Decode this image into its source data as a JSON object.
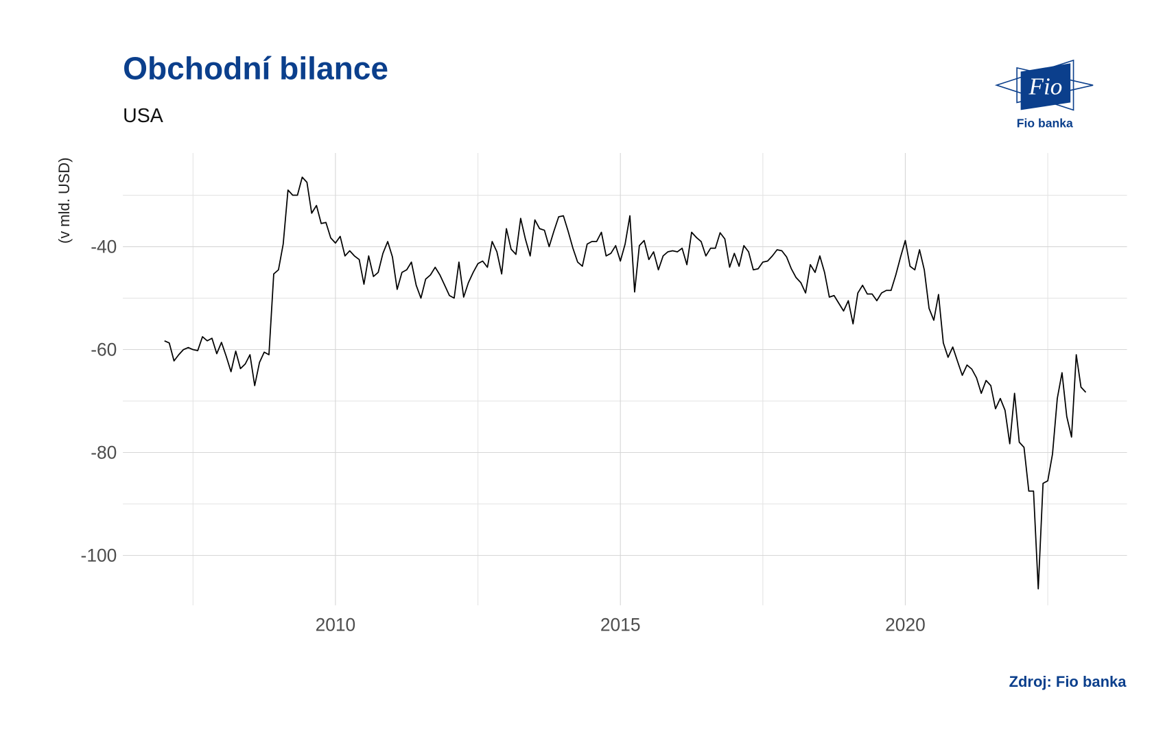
{
  "chart_data": {
    "type": "line",
    "title": "Obchodní bilance",
    "subtitle": "USA",
    "y_label": "(v mld. USD)",
    "source": "Zdroj: Fio banka",
    "logo": {
      "mark": "Fio",
      "name": "Fio banka"
    },
    "color": "#000000",
    "grid": true,
    "xlim": [
      2006.27,
      2023.89
    ],
    "xticks": [
      2010,
      2015,
      2020
    ],
    "xticks_minor": [
      2007.5,
      2012.5,
      2017.5,
      2022.5
    ],
    "ylim": [
      -109.7,
      -21.8
    ],
    "yticks": [
      -100,
      -80,
      -60,
      -40
    ],
    "yticks_minor": [
      -90,
      -70,
      -50,
      -30
    ],
    "x": [
      2007,
      2007.083,
      2007.167,
      2007.25,
      2007.333,
      2007.417,
      2007.5,
      2007.583,
      2007.667,
      2007.75,
      2007.833,
      2007.917,
      2008,
      2008.083,
      2008.167,
      2008.25,
      2008.333,
      2008.417,
      2008.5,
      2008.583,
      2008.667,
      2008.75,
      2008.833,
      2008.917,
      2009,
      2009.083,
      2009.167,
      2009.25,
      2009.333,
      2009.417,
      2009.5,
      2009.583,
      2009.667,
      2009.75,
      2009.833,
      2009.917,
      2010,
      2010.083,
      2010.167,
      2010.25,
      2010.333,
      2010.417,
      2010.5,
      2010.583,
      2010.667,
      2010.75,
      2010.833,
      2010.917,
      2011,
      2011.083,
      2011.167,
      2011.25,
      2011.333,
      2011.417,
      2011.5,
      2011.583,
      2011.667,
      2011.75,
      2011.833,
      2011.917,
      2012,
      2012.083,
      2012.167,
      2012.25,
      2012.333,
      2012.417,
      2012.5,
      2012.583,
      2012.667,
      2012.75,
      2012.833,
      2012.917,
      2013,
      2013.083,
      2013.167,
      2013.25,
      2013.333,
      2013.417,
      2013.5,
      2013.583,
      2013.667,
      2013.75,
      2013.833,
      2013.917,
      2014,
      2014.083,
      2014.167,
      2014.25,
      2014.333,
      2014.417,
      2014.5,
      2014.583,
      2014.667,
      2014.75,
      2014.833,
      2014.917,
      2015,
      2015.083,
      2015.167,
      2015.25,
      2015.333,
      2015.417,
      2015.5,
      2015.583,
      2015.667,
      2015.75,
      2015.833,
      2015.917,
      2016,
      2016.083,
      2016.167,
      2016.25,
      2016.333,
      2016.417,
      2016.5,
      2016.583,
      2016.667,
      2016.75,
      2016.833,
      2016.917,
      2017,
      2017.083,
      2017.167,
      2017.25,
      2017.333,
      2017.417,
      2017.5,
      2017.583,
      2017.667,
      2017.75,
      2017.833,
      2017.917,
      2018,
      2018.083,
      2018.167,
      2018.25,
      2018.333,
      2018.417,
      2018.5,
      2018.583,
      2018.667,
      2018.75,
      2018.833,
      2018.917,
      2019,
      2019.083,
      2019.167,
      2019.25,
      2019.333,
      2019.417,
      2019.5,
      2019.583,
      2019.667,
      2019.75,
      2019.833,
      2019.917,
      2020,
      2020.083,
      2020.167,
      2020.25,
      2020.333,
      2020.417,
      2020.5,
      2020.583,
      2020.667,
      2020.75,
      2020.833,
      2020.917,
      2021,
      2021.083,
      2021.167,
      2021.25,
      2021.333,
      2021.417,
      2021.5,
      2021.583,
      2021.667,
      2021.75,
      2021.833,
      2021.917,
      2022,
      2022.083,
      2022.167,
      2022.25,
      2022.333,
      2022.417,
      2022.5,
      2022.583,
      2022.667,
      2022.75,
      2022.833,
      2022.917,
      2023,
      2023.083,
      2023.167
    ],
    "values": [
      -58.3,
      -58.7,
      -62.2,
      -61,
      -60,
      -59.6,
      -60,
      -60.2,
      -57.5,
      -58.3,
      -57.8,
      -60.8,
      -58.6,
      -61.3,
      -64.3,
      -60.3,
      -63.7,
      -62.8,
      -61,
      -67,
      -62.5,
      -60.5,
      -61,
      -45.3,
      -44.5,
      -39.5,
      -29,
      -30,
      -30,
      -26.5,
      -27.5,
      -33.5,
      -32,
      -35.5,
      -35.3,
      -38.3,
      -39.3,
      -38,
      -41.8,
      -40.8,
      -41.8,
      -42.5,
      -47.3,
      -41.8,
      -45.8,
      -45,
      -41.3,
      -39,
      -42,
      -48.3,
      -45,
      -44.5,
      -43,
      -47.5,
      -50,
      -46.3,
      -45.5,
      -44,
      -45.5,
      -47.5,
      -49.5,
      -50,
      -43,
      -49.8,
      -47,
      -45,
      -43.3,
      -42.8,
      -44,
      -39,
      -41,
      -45.3,
      -36.5,
      -40.5,
      -41.5,
      -34.5,
      -38.5,
      -41.8,
      -34.8,
      -36.5,
      -36.8,
      -40,
      -37,
      -34.2,
      -34,
      -37,
      -40.3,
      -43,
      -43.8,
      -39.5,
      -39,
      -39,
      -37.2,
      -41.8,
      -41.3,
      -39.8,
      -42.8,
      -39.5,
      -34,
      -48.8,
      -39.8,
      -38.8,
      -42.5,
      -41,
      -44.5,
      -41.8,
      -41,
      -40.8,
      -41,
      -40.3,
      -43.5,
      -37.2,
      -38.2,
      -39,
      -41.8,
      -40.3,
      -40.3,
      -37.3,
      -38.5,
      -44,
      -41.3,
      -43.8,
      -39.8,
      -41,
      -44.5,
      -44.3,
      -43,
      -42.8,
      -41.8,
      -40.6,
      -40.8,
      -42,
      -44.3,
      -46,
      -47,
      -49,
      -43.5,
      -45,
      -41.8,
      -45,
      -49.8,
      -49.5,
      -51,
      -52.5,
      -50.5,
      -55,
      -49,
      -47.5,
      -49.2,
      -49.2,
      -50.5,
      -49,
      -48.5,
      -48.5,
      -45.5,
      -42,
      -38.8,
      -43.8,
      -44.5,
      -40.6,
      -44.5,
      -52,
      -54.3,
      -49.3,
      -58.7,
      -61.5,
      -59.5,
      -62.3,
      -65,
      -63,
      -63.8,
      -65.5,
      -68.5,
      -66,
      -67,
      -71.5,
      -69.5,
      -71.8,
      -78.3,
      -68.5,
      -78,
      -79,
      -87.5,
      -87.5,
      -106.5,
      -86,
      -85.5,
      -80.3,
      -69.5,
      -64.5,
      -73,
      -77,
      -61,
      -67.3,
      -68.3
    ]
  }
}
